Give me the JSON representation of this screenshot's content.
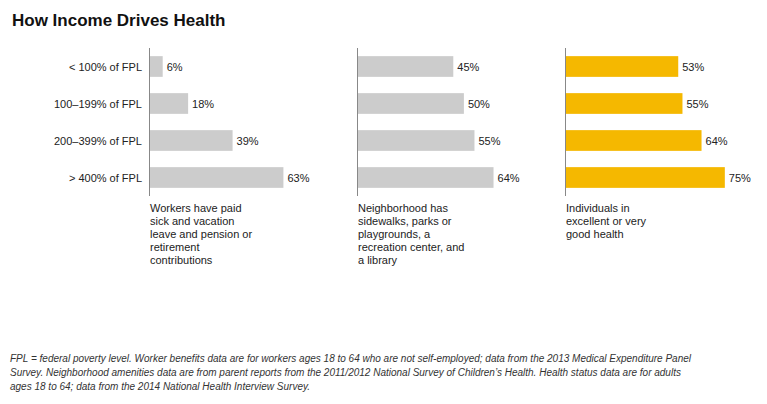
{
  "chart_data": {
    "type": "bar",
    "orientation": "horizontal",
    "title": "How Income Drives Health",
    "categories": [
      "< 100% of FPL",
      "100–199% of FPL",
      "200–399% of FPL",
      "> 400% of FPL"
    ],
    "series": [
      {
        "name": "Workers have paid\nsick and vacation\nleave and pension or\nretirement\ncontributions",
        "color": "#cccccc",
        "values": [
          6,
          18,
          39,
          63
        ],
        "value_labels": [
          "6%",
          "18%",
          "39%",
          "63%"
        ]
      },
      {
        "name": "Neighborhood has\nsidewalks, parks or\nplaygrounds, a\nrecreation center, and\na library",
        "color": "#cccccc",
        "values": [
          45,
          50,
          55,
          64
        ],
        "value_labels": [
          "45%",
          "50%",
          "55%",
          "64%"
        ]
      },
      {
        "name": "Individuals in\nexcellent or very\ngood health",
        "color": "#f5b800",
        "values": [
          53,
          55,
          64,
          75
        ],
        "value_labels": [
          "53%",
          "55%",
          "64%",
          "75%"
        ]
      }
    ],
    "xlim": [
      0,
      85
    ],
    "data_labels": true,
    "tick_labels": "y",
    "annotations": [
      "FPL = federal poverty level. Worker benefits data are for workers ages 18 to 64 who are not self-employed; data from the 2013 Medical Expenditure Panel",
      "Survey. Neighborhood amenities data are from parent reports from the 2011/2012 National Survey of Children’s Health. Health status data are for adults",
      "ages 18 to 64; data from the 2014 National Health Interview Survey."
    ]
  }
}
